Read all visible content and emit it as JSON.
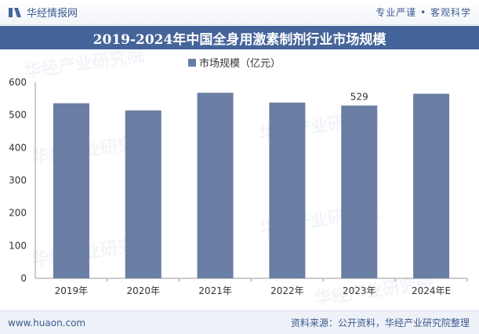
{
  "header": {
    "brand": "华经情报网",
    "tagline": "专业严谨 • 客观科学"
  },
  "footer": {
    "website": "www.huaon.com",
    "source": "资料来源：公开资料，华经产业研究院整理"
  },
  "watermark": {
    "text": "华经产业研究院",
    "url": "www.huaon.com"
  },
  "colors": {
    "bar": "#6a7da3",
    "header_bg": "#45659a",
    "axis_text": "#333333"
  },
  "chart_data": {
    "type": "bar",
    "title": "2019-2024年中国全身用激素制剂行业市场规模",
    "categories": [
      "2019年",
      "2020年",
      "2021年",
      "2022年",
      "2023年",
      "2024年E"
    ],
    "series": [
      {
        "name": "市场规模（亿元）",
        "values": [
          536,
          514,
          568,
          538,
          529,
          565
        ]
      }
    ],
    "data_labels": [
      null,
      null,
      null,
      null,
      "529",
      null
    ],
    "ylim": [
      0,
      600
    ],
    "yticks": [
      0,
      100,
      200,
      300,
      400,
      500,
      600
    ],
    "xlabel": "",
    "ylabel": "",
    "legend": "top-center",
    "grid": false
  }
}
